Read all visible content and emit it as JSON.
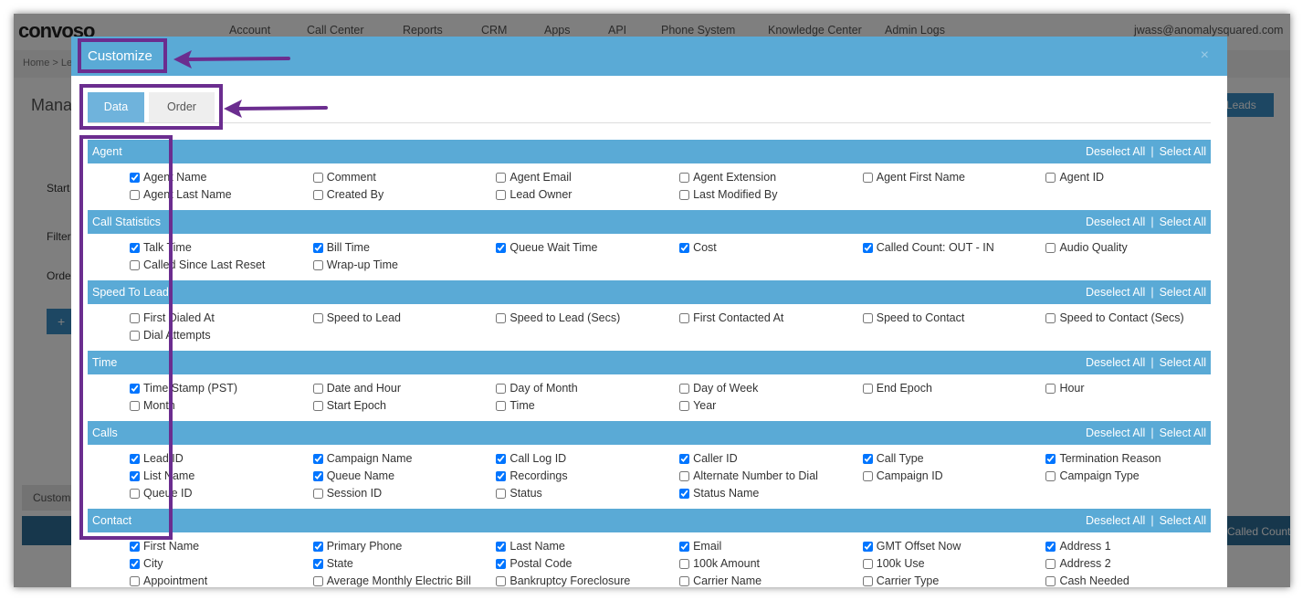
{
  "app": {
    "logo": "convoso",
    "nav": [
      "Account",
      "Call Center",
      "Reports",
      "CRM",
      "Apps",
      "API",
      "Phone System",
      "Knowledge Center",
      "Admin Logs"
    ],
    "user_email": "jwass@anomalysquared.com",
    "breadcrumb": "Home > Le",
    "page_title": "Manag",
    "labels": [
      "Start",
      "Filter",
      "Orde"
    ],
    "add_button": "+",
    "leads_button": "Leads",
    "tab_label": "Custom",
    "column_header": "Called Count"
  },
  "modal": {
    "title": "Customize",
    "close": "×",
    "tabs": [
      {
        "label": "Data",
        "active": true
      },
      {
        "label": "Order",
        "active": false
      }
    ],
    "sections": [
      {
        "name": "Agent",
        "deselect": "Deselect All",
        "separator": "|",
        "select": "Select All",
        "items": [
          {
            "label": "Agent Name",
            "checked": true
          },
          {
            "label": "Comment",
            "checked": false
          },
          {
            "label": "Agent Email",
            "checked": false
          },
          {
            "label": "Agent Extension",
            "checked": false
          },
          {
            "label": "Agent First Name",
            "checked": false
          },
          {
            "label": "Agent ID",
            "checked": false
          },
          {
            "label": "Agent Last Name",
            "checked": false
          },
          {
            "label": "Created By",
            "checked": false
          },
          {
            "label": "Lead Owner",
            "checked": false
          },
          {
            "label": "Last Modified By",
            "checked": false
          }
        ]
      },
      {
        "name": "Call Statistics",
        "deselect": "Deselect All",
        "separator": "|",
        "select": "Select All",
        "items": [
          {
            "label": "Talk Time",
            "checked": true
          },
          {
            "label": "Bill Time",
            "checked": true
          },
          {
            "label": "Queue Wait Time",
            "checked": true
          },
          {
            "label": "Cost",
            "checked": true
          },
          {
            "label": "Called Count: OUT - IN",
            "checked": true
          },
          {
            "label": "Audio Quality",
            "checked": false
          },
          {
            "label": "Called Since Last Reset",
            "checked": false
          },
          {
            "label": "Wrap-up Time",
            "checked": false
          }
        ]
      },
      {
        "name": "Speed To Lead",
        "deselect": "Deselect All",
        "separator": "|",
        "select": "Select All",
        "items": [
          {
            "label": "First Dialed At",
            "checked": false
          },
          {
            "label": "Speed to Lead",
            "checked": false
          },
          {
            "label": "Speed to Lead (Secs)",
            "checked": false
          },
          {
            "label": "First Contacted At",
            "checked": false
          },
          {
            "label": "Speed to Contact",
            "checked": false
          },
          {
            "label": "Speed to Contact (Secs)",
            "checked": false
          },
          {
            "label": "Dial Attempts",
            "checked": false
          }
        ]
      },
      {
        "name": "Time",
        "deselect": "Deselect All",
        "separator": "|",
        "select": "Select All",
        "items": [
          {
            "label": "Time Stamp (PST)",
            "checked": true
          },
          {
            "label": "Date and Hour",
            "checked": false
          },
          {
            "label": "Day of Month",
            "checked": false
          },
          {
            "label": "Day of Week",
            "checked": false
          },
          {
            "label": "End Epoch",
            "checked": false
          },
          {
            "label": "Hour",
            "checked": false
          },
          {
            "label": "Month",
            "checked": false
          },
          {
            "label": "Start Epoch",
            "checked": false
          },
          {
            "label": "Time",
            "checked": false
          },
          {
            "label": "Year",
            "checked": false
          }
        ]
      },
      {
        "name": "Calls",
        "deselect": "Deselect All",
        "separator": "|",
        "select": "Select All",
        "items": [
          {
            "label": "Lead ID",
            "checked": true
          },
          {
            "label": "Campaign Name",
            "checked": true
          },
          {
            "label": "Call Log ID",
            "checked": true
          },
          {
            "label": "Caller ID",
            "checked": true
          },
          {
            "label": "Call Type",
            "checked": true
          },
          {
            "label": "Termination Reason",
            "checked": true
          },
          {
            "label": "List Name",
            "checked": true
          },
          {
            "label": "Queue Name",
            "checked": true
          },
          {
            "label": "Recordings",
            "checked": true
          },
          {
            "label": "Alternate Number to Dial",
            "checked": false
          },
          {
            "label": "Campaign ID",
            "checked": false
          },
          {
            "label": "Campaign Type",
            "checked": false
          },
          {
            "label": "Queue ID",
            "checked": false
          },
          {
            "label": "Session ID",
            "checked": false
          },
          {
            "label": "Status",
            "checked": false
          },
          {
            "label": "Status Name",
            "checked": true
          }
        ]
      },
      {
        "name": "Contact",
        "deselect": "Deselect All",
        "separator": "|",
        "select": "Select All",
        "items": [
          {
            "label": "First Name",
            "checked": true
          },
          {
            "label": "Primary Phone",
            "checked": true
          },
          {
            "label": "Last Name",
            "checked": true
          },
          {
            "label": "Email",
            "checked": true
          },
          {
            "label": "GMT Offset Now",
            "checked": true
          },
          {
            "label": "Address 1",
            "checked": true
          },
          {
            "label": "City",
            "checked": true
          },
          {
            "label": "State",
            "checked": true
          },
          {
            "label": "Postal Code",
            "checked": true
          },
          {
            "label": "100k Amount",
            "checked": false
          },
          {
            "label": "100k Use",
            "checked": false
          },
          {
            "label": "Address 2",
            "checked": false
          },
          {
            "label": "Appointment",
            "checked": false
          },
          {
            "label": "Average Monthly Electric Bill",
            "checked": false
          },
          {
            "label": "Bankruptcy Foreclosure",
            "checked": false
          },
          {
            "label": "Carrier Name",
            "checked": false
          },
          {
            "label": "Carrier Type",
            "checked": false
          },
          {
            "label": "Cash Needed",
            "checked": false
          }
        ]
      }
    ]
  }
}
